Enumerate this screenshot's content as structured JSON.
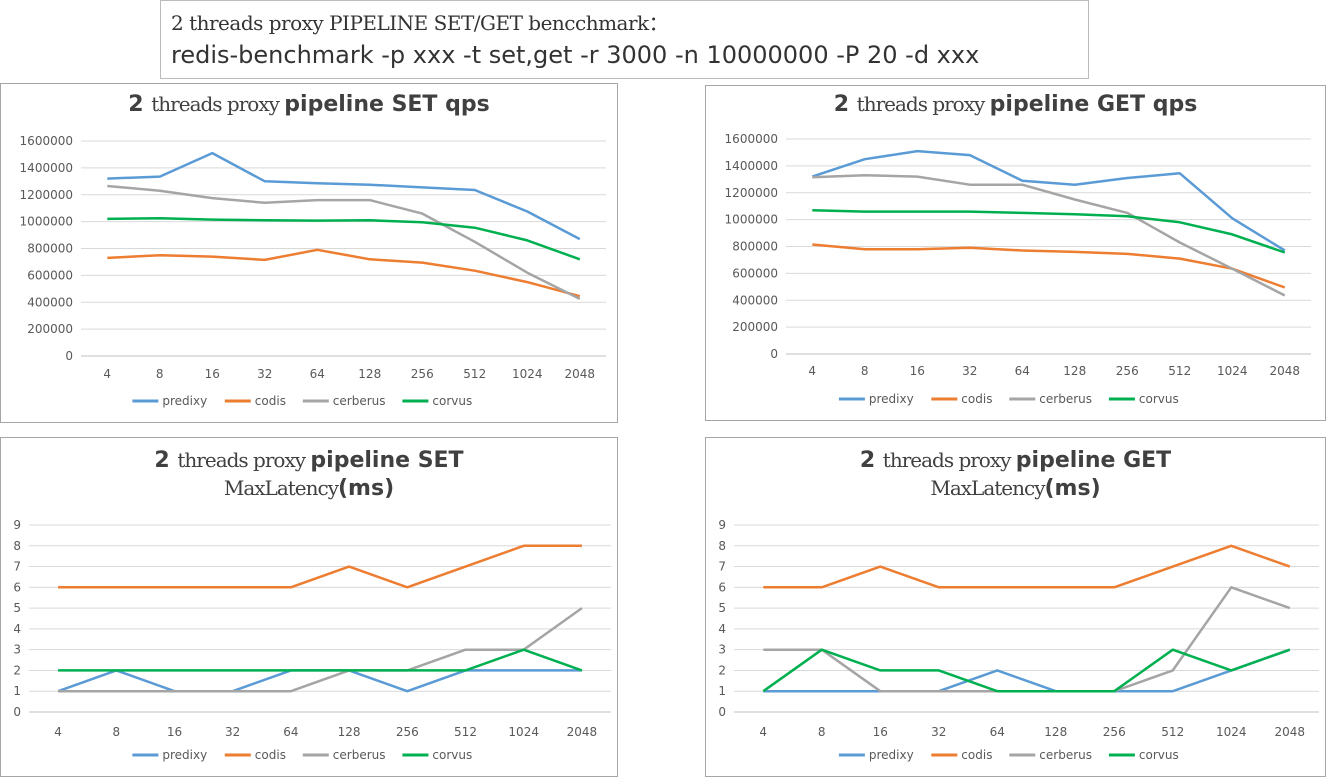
{
  "header": {
    "line1": "2 threads proxy PIPELINE SET/GET bencchmark：",
    "line2": "redis-benchmark -p xxx -t set,get -r 3000 -n 10000000 -P 20 -d xxx"
  },
  "chart_data": [
    {
      "type": "line",
      "title_lines": [
        [
          {
            "text": "2 ",
            "style": "bold"
          },
          {
            "text": "threads proxy ",
            "style": "serif"
          },
          {
            "text": "pipeline SET qps",
            "style": "bold"
          }
        ]
      ],
      "categories": [
        "4",
        "8",
        "16",
        "32",
        "64",
        "128",
        "256",
        "512",
        "1024",
        "2048"
      ],
      "ylim": [
        0,
        1600000
      ],
      "yticks": [
        0,
        200000,
        400000,
        600000,
        800000,
        1000000,
        1200000,
        1400000,
        1600000
      ],
      "grid": true,
      "legend": "bottom",
      "series": [
        {
          "name": "predixy",
          "color": "#5b9bd5",
          "values": [
            1320000,
            1335000,
            1510000,
            1300000,
            1285000,
            1275000,
            1255000,
            1235000,
            1075000,
            870000
          ]
        },
        {
          "name": "codis",
          "color": "#ed7d31",
          "values": [
            730000,
            750000,
            740000,
            715000,
            790000,
            720000,
            695000,
            635000,
            550000,
            445000
          ]
        },
        {
          "name": "cerberus",
          "color": "#a5a5a5",
          "values": [
            1265000,
            1230000,
            1175000,
            1140000,
            1160000,
            1160000,
            1060000,
            850000,
            620000,
            425000
          ]
        },
        {
          "name": "corvus",
          "color": "#00b050",
          "values": [
            1020000,
            1025000,
            1015000,
            1010000,
            1008000,
            1010000,
            995000,
            955000,
            860000,
            720000
          ]
        }
      ]
    },
    {
      "type": "line",
      "title_lines": [
        [
          {
            "text": "2 ",
            "style": "bold"
          },
          {
            "text": "threads proxy ",
            "style": "serif"
          },
          {
            "text": "pipeline GET qps",
            "style": "bold"
          }
        ]
      ],
      "categories": [
        "4",
        "8",
        "16",
        "32",
        "64",
        "128",
        "256",
        "512",
        "1024",
        "2048"
      ],
      "ylim": [
        0,
        1600000
      ],
      "yticks": [
        0,
        200000,
        400000,
        600000,
        800000,
        1000000,
        1200000,
        1400000,
        1600000
      ],
      "grid": true,
      "legend": "bottom",
      "series": [
        {
          "name": "predixy",
          "color": "#5b9bd5",
          "values": [
            1320000,
            1450000,
            1510000,
            1480000,
            1290000,
            1260000,
            1310000,
            1345000,
            1010000,
            770000
          ]
        },
        {
          "name": "codis",
          "color": "#ed7d31",
          "values": [
            815000,
            780000,
            780000,
            790000,
            770000,
            760000,
            745000,
            710000,
            635000,
            495000
          ]
        },
        {
          "name": "cerberus",
          "color": "#a5a5a5",
          "values": [
            1315000,
            1330000,
            1320000,
            1260000,
            1260000,
            1150000,
            1050000,
            830000,
            635000,
            435000
          ]
        },
        {
          "name": "corvus",
          "color": "#00b050",
          "values": [
            1070000,
            1060000,
            1060000,
            1060000,
            1050000,
            1040000,
            1025000,
            980000,
            890000,
            755000
          ]
        }
      ]
    },
    {
      "type": "line",
      "title_lines": [
        [
          {
            "text": "2 ",
            "style": "bold"
          },
          {
            "text": "threads proxy ",
            "style": "serif"
          },
          {
            "text": "pipeline SET",
            "style": "bold"
          }
        ],
        [
          {
            "text": "MaxLatency",
            "style": "serif"
          },
          {
            "text": "(ms)",
            "style": "bold"
          }
        ]
      ],
      "categories": [
        "4",
        "8",
        "16",
        "32",
        "64",
        "128",
        "256",
        "512",
        "1024",
        "2048"
      ],
      "ylim": [
        0,
        9
      ],
      "yticks": [
        0,
        1,
        2,
        3,
        4,
        5,
        6,
        7,
        8,
        9
      ],
      "grid": true,
      "legend": "bottom",
      "series": [
        {
          "name": "predixy",
          "color": "#5b9bd5",
          "values": [
            1,
            2,
            1,
            1,
            2,
            2,
            1,
            2,
            2,
            2
          ]
        },
        {
          "name": "codis",
          "color": "#ed7d31",
          "values": [
            6,
            6,
            6,
            6,
            6,
            7,
            6,
            7,
            8,
            8
          ]
        },
        {
          "name": "cerberus",
          "color": "#a5a5a5",
          "values": [
            1,
            1,
            1,
            1,
            1,
            2,
            2,
            3,
            3,
            5
          ]
        },
        {
          "name": "corvus",
          "color": "#00b050",
          "values": [
            2,
            2,
            2,
            2,
            2,
            2,
            2,
            2,
            3,
            2
          ]
        }
      ]
    },
    {
      "type": "line",
      "title_lines": [
        [
          {
            "text": "2 ",
            "style": "bold"
          },
          {
            "text": "threads proxy ",
            "style": "serif"
          },
          {
            "text": "pipeline GET",
            "style": "bold"
          }
        ],
        [
          {
            "text": "MaxLatency",
            "style": "serif"
          },
          {
            "text": "(ms)",
            "style": "bold"
          }
        ]
      ],
      "categories": [
        "4",
        "8",
        "16",
        "32",
        "64",
        "128",
        "256",
        "512",
        "1024",
        "2048"
      ],
      "ylim": [
        0,
        9
      ],
      "yticks": [
        0,
        1,
        2,
        3,
        4,
        5,
        6,
        7,
        8,
        9
      ],
      "grid": true,
      "legend": "bottom",
      "series": [
        {
          "name": "predixy",
          "color": "#5b9bd5",
          "values": [
            1,
            1,
            1,
            1,
            2,
            1,
            1,
            1,
            2,
            3
          ]
        },
        {
          "name": "codis",
          "color": "#ed7d31",
          "values": [
            6,
            6,
            7,
            6,
            6,
            6,
            6,
            7,
            8,
            7
          ]
        },
        {
          "name": "cerberus",
          "color": "#a5a5a5",
          "values": [
            3,
            3,
            1,
            1,
            1,
            1,
            1,
            2,
            6,
            5
          ]
        },
        {
          "name": "corvus",
          "color": "#00b050",
          "values": [
            1,
            3,
            2,
            2,
            1,
            1,
            1,
            3,
            2,
            3
          ]
        }
      ]
    }
  ]
}
